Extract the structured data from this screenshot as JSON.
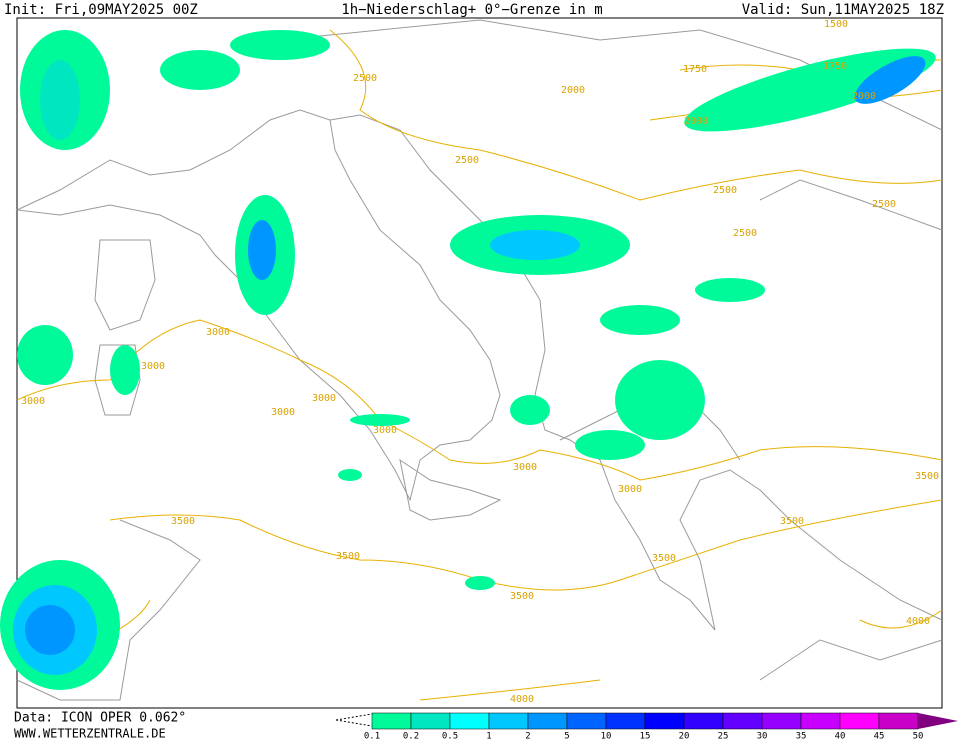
{
  "header": {
    "init": "Init: Fri,09MAY2025 00Z",
    "title": "1h−Niederschlag+ 0°−Grenze in m",
    "valid": "Valid: Sun,11MAY2025 18Z"
  },
  "footer": {
    "source": "Data: ICON OPER 0.062°",
    "site": "WWW.WETTERZENTRALE.DE"
  },
  "legend": {
    "labels": [
      0.1,
      0.2,
      0.5,
      1,
      2,
      5,
      10,
      15,
      20,
      25,
      30,
      35,
      40,
      45,
      50
    ],
    "colors": [
      "#00fa9a",
      "#00e6c0",
      "#00ffff",
      "#00c8ff",
      "#0096ff",
      "#0064ff",
      "#0032ff",
      "#0000ff",
      "#3200ff",
      "#6400ff",
      "#9600ff",
      "#c800ff",
      "#ff00ff",
      "#c800c8",
      "#800080"
    ]
  },
  "contour_labels": [
    1500,
    1750,
    1750,
    2000,
    2000,
    2000,
    2500,
    2500,
    2500,
    2500,
    2500,
    3000,
    3000,
    3000,
    3000,
    3000,
    3000,
    3000,
    3000,
    3500,
    3500,
    3500,
    3500,
    3500,
    3500,
    4000,
    4000
  ]
}
